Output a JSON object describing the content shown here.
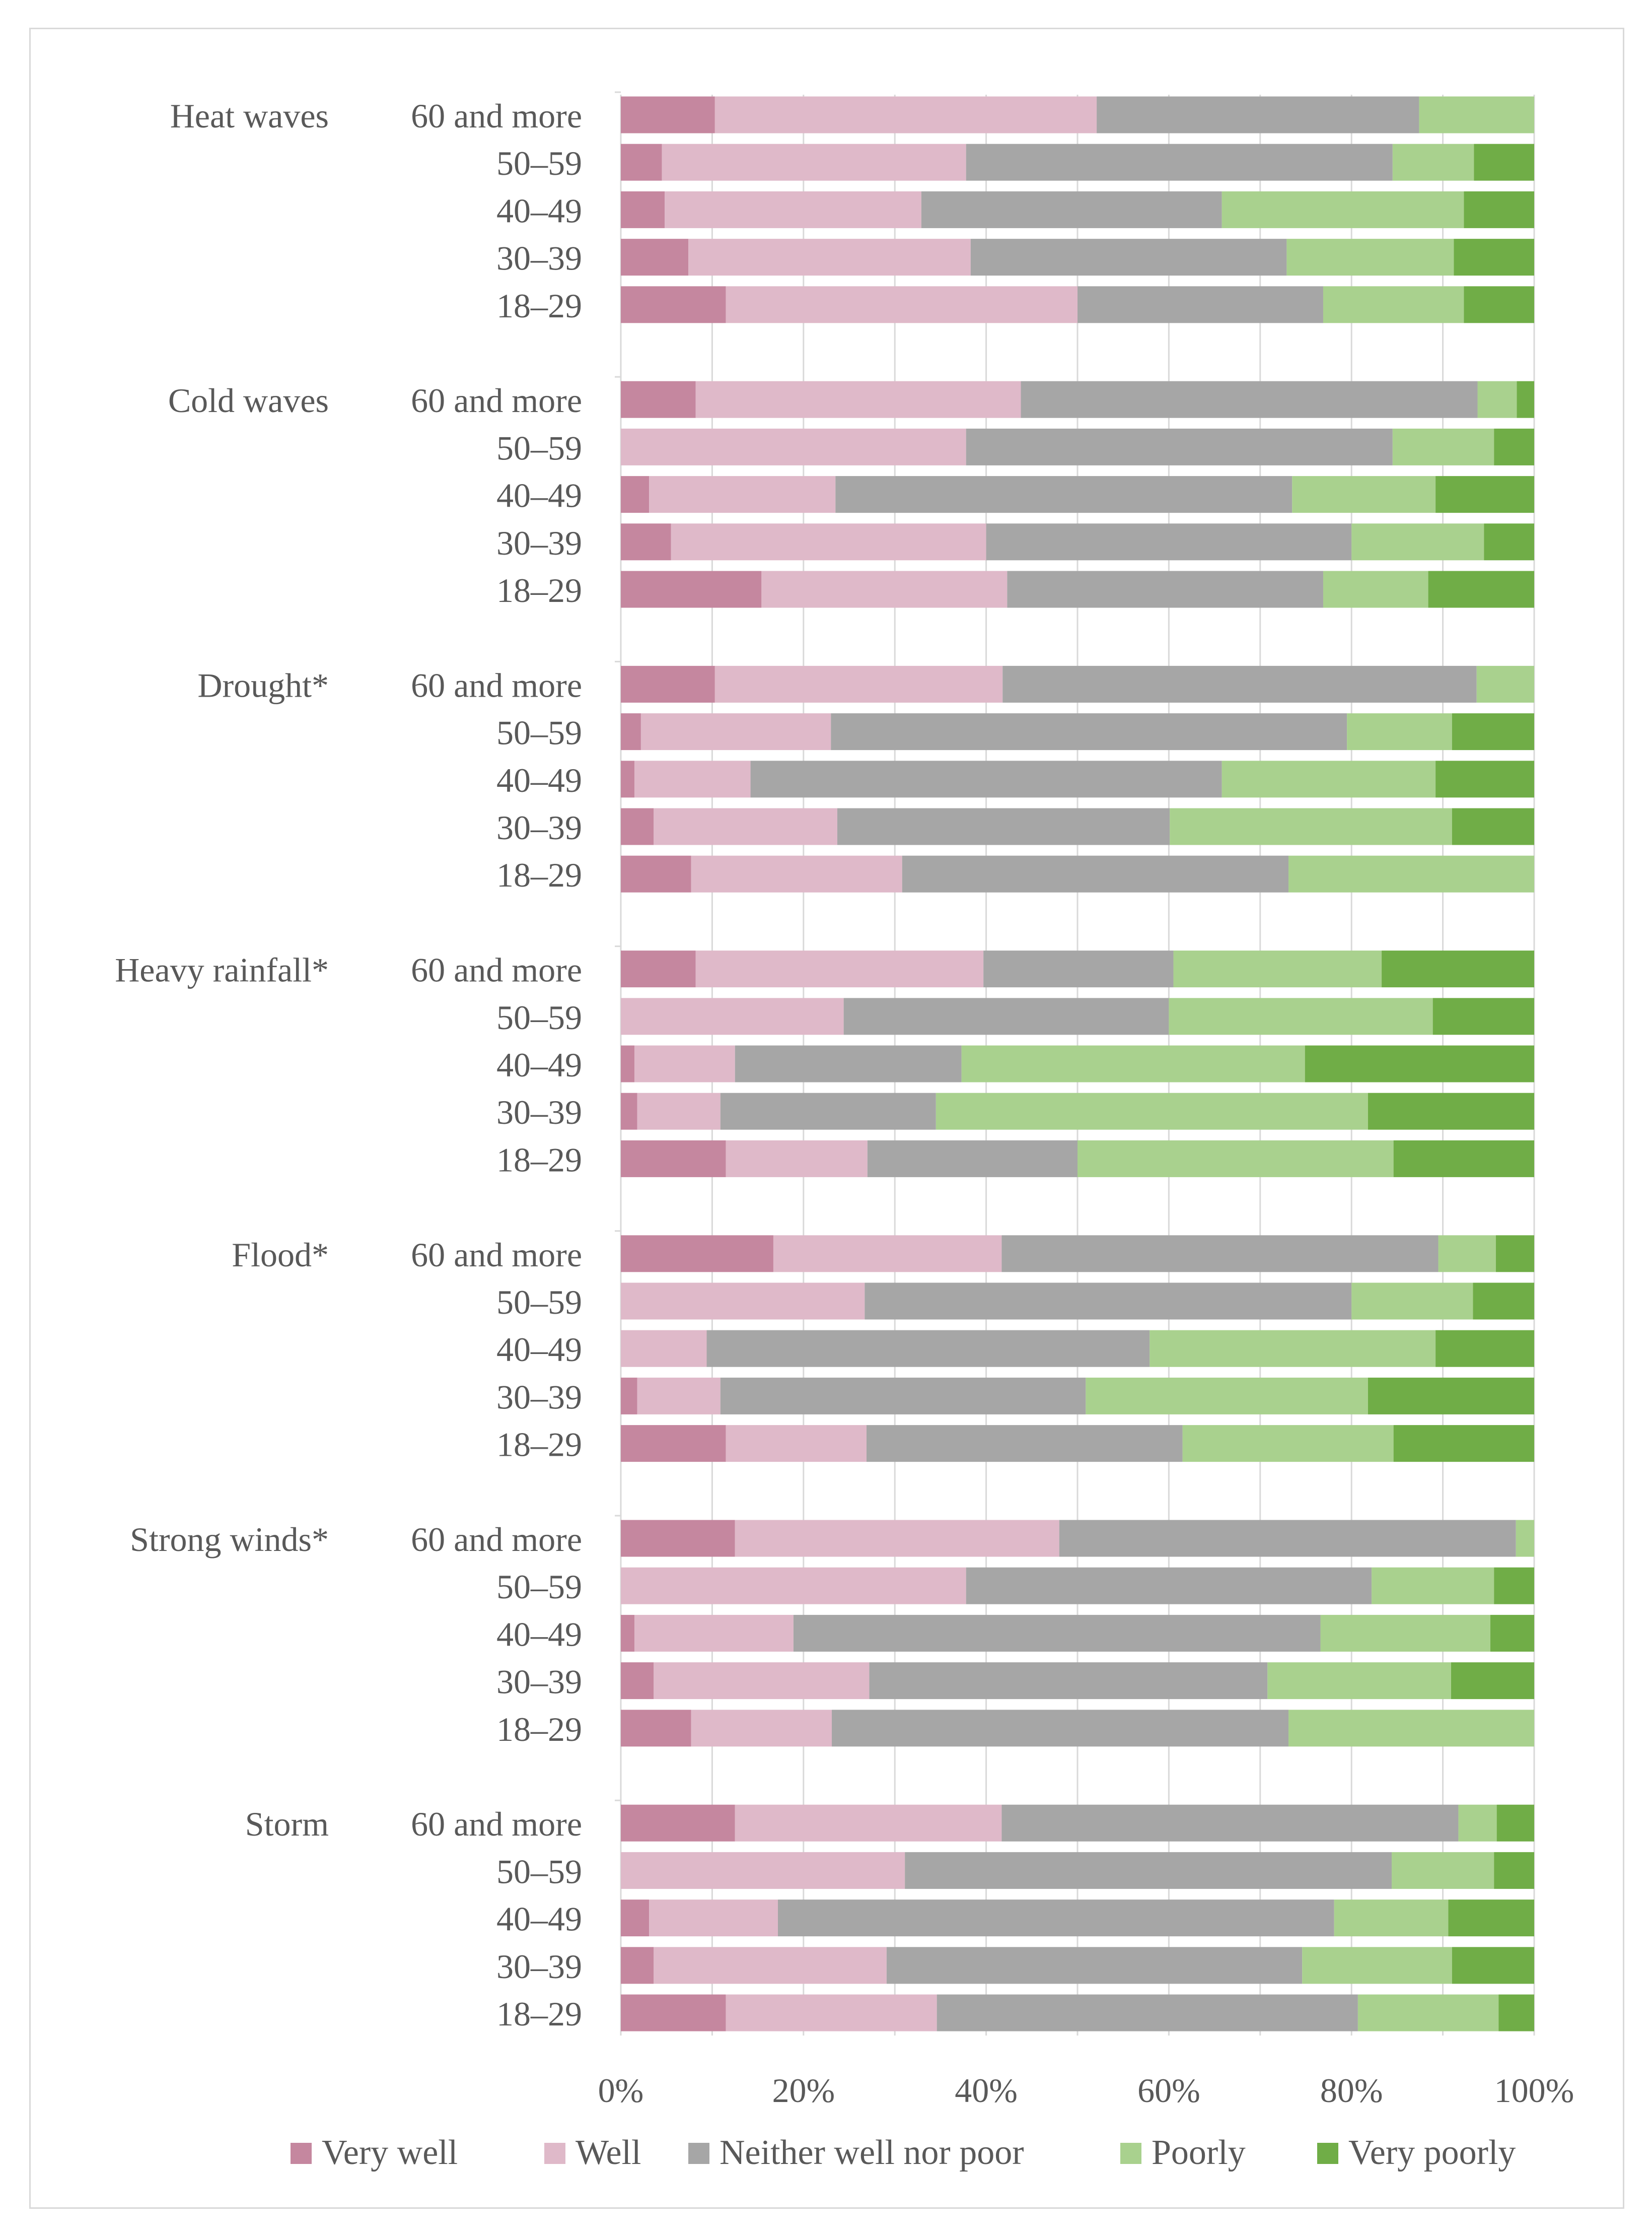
{
  "chart_data": {
    "type": "bar",
    "orientation": "horizontal",
    "stacked": "percent",
    "title": "",
    "xlabel": "",
    "ylabel": "",
    "xlim": [
      0,
      100
    ],
    "x_ticks": [
      "0%",
      "20%",
      "40%",
      "60%",
      "80%",
      "100%"
    ],
    "grid": true,
    "legend_position": "bottom",
    "series_names": [
      "Very well",
      "Well",
      "Neither well nor poor",
      "Poorly",
      "Very poorly"
    ],
    "colors": [
      "#c5879f",
      "#dfb9c9",
      "#a6a6a6",
      "#a9d18e",
      "#70ad47"
    ],
    "groups": [
      {
        "name": "Heat waves",
        "rows": [
          {
            "label": "60 and more",
            "values": [
              10.3,
              41.8,
              35.3,
              12.6,
              0
            ]
          },
          {
            "label": "50–59",
            "values": [
              4.5,
              33.3,
              46.7,
              8.9,
              6.6
            ]
          },
          {
            "label": "40–49",
            "values": [
              4.8,
              28.1,
              32.9,
              26.5,
              7.7
            ]
          },
          {
            "label": "30–39",
            "values": [
              7.4,
              30.9,
              34.6,
              18.3,
              8.8
            ]
          },
          {
            "label": "18–29",
            "values": [
              11.5,
              38.5,
              26.9,
              15.4,
              7.7
            ]
          }
        ]
      },
      {
        "name": "Cold waves",
        "rows": [
          {
            "label": "60 and more",
            "values": [
              8.2,
              35.6,
              50.0,
              4.3,
              1.9
            ]
          },
          {
            "label": "50–59",
            "values": [
              0,
              37.8,
              46.7,
              11.1,
              4.4
            ]
          },
          {
            "label": "40–49",
            "values": [
              3.1,
              20.4,
              50.0,
              15.7,
              10.8
            ]
          },
          {
            "label": "30–39",
            "values": [
              5.5,
              34.5,
              40.0,
              14.5,
              5.5
            ]
          },
          {
            "label": "18–29",
            "values": [
              15.4,
              26.9,
              34.6,
              11.5,
              11.6
            ]
          }
        ]
      },
      {
        "name": "Drought*",
        "rows": [
          {
            "label": "60 and more",
            "values": [
              10.3,
              31.5,
              51.9,
              6.3,
              0
            ]
          },
          {
            "label": "50–59",
            "values": [
              2.2,
              20.8,
              56.5,
              11.5,
              9.0
            ]
          },
          {
            "label": "40–49",
            "values": [
              1.5,
              12.7,
              51.6,
              23.4,
              10.8
            ]
          },
          {
            "label": "30–39",
            "values": [
              3.6,
              20.1,
              36.4,
              30.9,
              9.0
            ]
          },
          {
            "label": "18–29",
            "values": [
              7.7,
              23.1,
              42.3,
              26.9,
              0
            ]
          }
        ]
      },
      {
        "name": "Heavy rainfall*",
        "rows": [
          {
            "label": "60 and more",
            "values": [
              8.2,
              31.5,
              20.8,
              22.8,
              16.7
            ]
          },
          {
            "label": "50–59",
            "values": [
              0,
              24.4,
              35.6,
              28.9,
              11.1
            ]
          },
          {
            "label": "40–49",
            "values": [
              1.5,
              11.0,
              24.8,
              37.6,
              25.1
            ]
          },
          {
            "label": "30–39",
            "values": [
              1.8,
              9.1,
              23.6,
              47.3,
              18.2
            ]
          },
          {
            "label": "18–29",
            "values": [
              11.5,
              15.5,
              23.0,
              34.6,
              15.4
            ]
          }
        ]
      },
      {
        "name": "Flood*",
        "rows": [
          {
            "label": "60 and more",
            "values": [
              16.7,
              25.0,
              47.8,
              6.3,
              4.2
            ]
          },
          {
            "label": "50–59",
            "values": [
              0,
              26.7,
              53.3,
              13.3,
              6.7
            ]
          },
          {
            "label": "40–49",
            "values": [
              0,
              9.4,
              48.5,
              31.3,
              10.8
            ]
          },
          {
            "label": "30–39",
            "values": [
              1.8,
              9.1,
              40.0,
              30.9,
              18.2
            ]
          },
          {
            "label": "18–29",
            "values": [
              11.5,
              15.4,
              34.6,
              23.1,
              15.4
            ]
          }
        ]
      },
      {
        "name": "Strong winds*",
        "rows": [
          {
            "label": "60 and more",
            "values": [
              12.5,
              35.5,
              50.0,
              2.0,
              0
            ]
          },
          {
            "label": "50–59",
            "values": [
              0,
              37.8,
              44.4,
              13.4,
              4.4
            ]
          },
          {
            "label": "40–49",
            "values": [
              1.5,
              17.4,
              57.7,
              18.6,
              4.8
            ]
          },
          {
            "label": "30–39",
            "values": [
              3.6,
              23.6,
              43.6,
              20.1,
              9.1
            ]
          },
          {
            "label": "18–29",
            "values": [
              7.7,
              15.4,
              50.0,
              26.9,
              0
            ]
          }
        ]
      },
      {
        "name": "Storm",
        "rows": [
          {
            "label": "60 and more",
            "values": [
              12.5,
              29.2,
              50.0,
              4.2,
              4.1
            ]
          },
          {
            "label": "50–59",
            "values": [
              0,
              31.1,
              53.3,
              11.2,
              4.4
            ]
          },
          {
            "label": "40–49",
            "values": [
              3.1,
              14.1,
              60.9,
              12.5,
              9.4
            ]
          },
          {
            "label": "30–39",
            "values": [
              3.6,
              25.5,
              45.5,
              16.4,
              9.0
            ]
          },
          {
            "label": "18–29",
            "values": [
              11.5,
              23.1,
              46.1,
              15.4,
              3.9
            ]
          }
        ]
      }
    ]
  }
}
